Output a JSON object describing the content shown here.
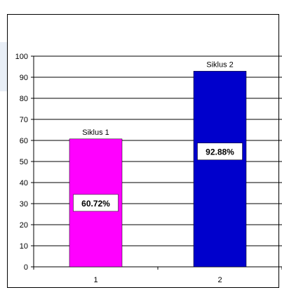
{
  "chart_data": {
    "type": "bar",
    "title": "",
    "xlabel": "",
    "ylabel": "",
    "categories": [
      "1",
      "2"
    ],
    "values": [
      60.72,
      92.88
    ],
    "bar_top_labels": [
      "Siklus 1",
      "Siklus 2"
    ],
    "data_labels": [
      "60.72%",
      "92.88%"
    ],
    "colors": [
      "#ff00ff",
      "#0000cc"
    ],
    "ylim": [
      0,
      100
    ],
    "yticks": [
      0,
      10,
      20,
      30,
      40,
      50,
      60,
      70,
      80,
      90,
      100
    ],
    "grid": true,
    "legend": "none"
  }
}
